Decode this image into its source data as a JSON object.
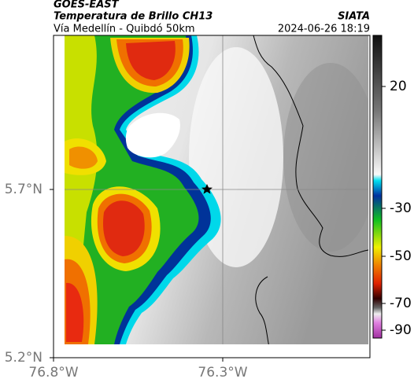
{
  "header": {
    "title": "GOES-EAST",
    "subtitle": "Temperatura de Brillo CH13",
    "location": "Vía Medellín - Quibdó 50km",
    "source": "SIATA",
    "timestamp": "2024-06-26 18:19"
  },
  "map": {
    "lat_ticks": [
      "5.7°N",
      "5.2°N"
    ],
    "lon_ticks": [
      "76.8°W",
      "76.3°W"
    ]
  },
  "colorbar": {
    "ticks": [
      20,
      -30,
      -50,
      -70,
      -90
    ]
  }
}
